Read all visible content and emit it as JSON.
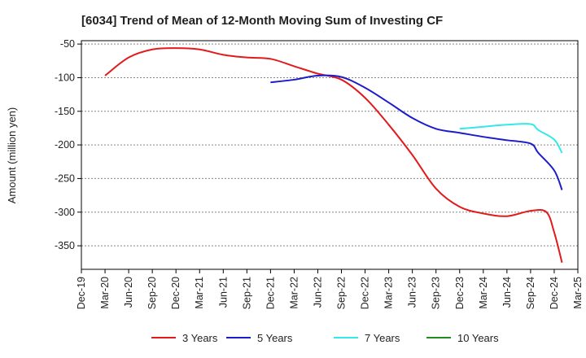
{
  "chart_data": {
    "type": "line",
    "title": "[6034]  Trend of Mean of 12-Month Moving Sum of Investing CF",
    "xlabel": "",
    "ylabel": "Amount (million yen)",
    "ylim": [
      -385,
      -45
    ],
    "yticks": [
      -50,
      -100,
      -150,
      -200,
      -250,
      -300,
      -350
    ],
    "categories": [
      "Dec-19",
      "Mar-20",
      "Jun-20",
      "Sep-20",
      "Dec-20",
      "Mar-21",
      "Jun-21",
      "Sep-21",
      "Dec-21",
      "Mar-22",
      "Jun-22",
      "Sep-22",
      "Dec-22",
      "Mar-23",
      "Jun-23",
      "Sep-23",
      "Dec-23",
      "Mar-24",
      "Jun-24",
      "Sep-24",
      "Dec-24",
      "Mar-25"
    ],
    "series": [
      {
        "name": "3 Years",
        "color": "#e31a1c",
        "points": [
          [
            1,
            -97
          ],
          [
            2,
            -70
          ],
          [
            3,
            -58
          ],
          [
            4,
            -56
          ],
          [
            5,
            -58
          ],
          [
            6,
            -66
          ],
          [
            7,
            -70
          ],
          [
            8,
            -72
          ],
          [
            9,
            -83
          ],
          [
            10,
            -94
          ],
          [
            11,
            -103
          ],
          [
            12,
            -130
          ],
          [
            13,
            -170
          ],
          [
            14,
            -215
          ],
          [
            15,
            -265
          ],
          [
            16,
            -292
          ],
          [
            17,
            -302
          ],
          [
            18,
            -306
          ],
          [
            19,
            -298
          ],
          [
            19.67,
            -300
          ],
          [
            20,
            -330
          ],
          [
            20.33,
            -375
          ]
        ]
      },
      {
        "name": "5 Years",
        "color": "#1c1ccd",
        "points": [
          [
            8,
            -107
          ],
          [
            9,
            -103
          ],
          [
            10,
            -97
          ],
          [
            11,
            -99
          ],
          [
            12,
            -115
          ],
          [
            13,
            -137
          ],
          [
            14,
            -160
          ],
          [
            15,
            -176
          ],
          [
            16,
            -182
          ],
          [
            17,
            -188
          ],
          [
            18,
            -193
          ],
          [
            19,
            -198
          ],
          [
            19.33,
            -212
          ],
          [
            20,
            -238
          ],
          [
            20.33,
            -267
          ]
        ]
      },
      {
        "name": "7 Years",
        "color": "#33e8e8",
        "points": [
          [
            16,
            -176
          ],
          [
            17,
            -173
          ],
          [
            18,
            -170
          ],
          [
            19,
            -169
          ],
          [
            19.33,
            -178
          ],
          [
            20,
            -192
          ],
          [
            20.33,
            -212
          ]
        ]
      },
      {
        "name": "10 Years",
        "color": "#228b22",
        "points": []
      }
    ],
    "legend_position": "bottom"
  }
}
